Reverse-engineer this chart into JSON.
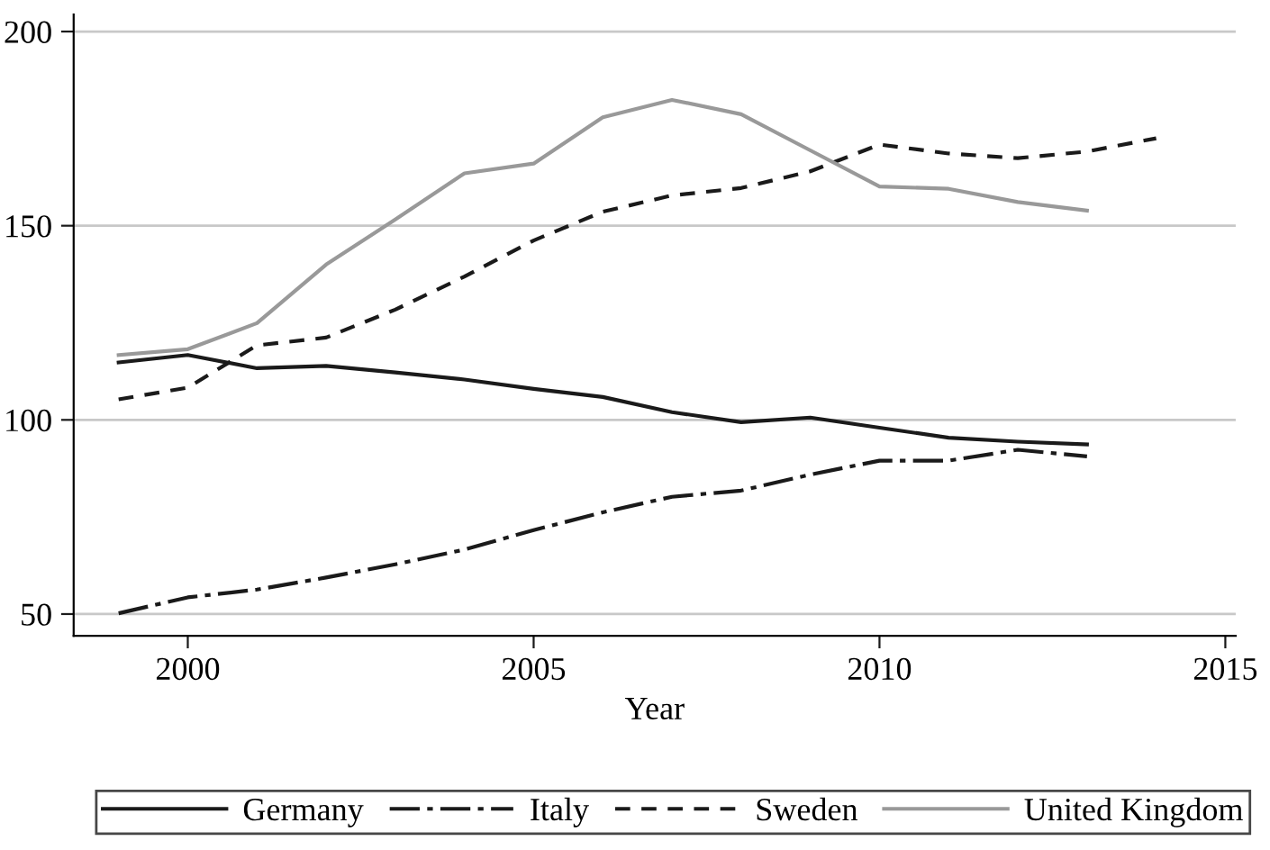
{
  "chart_data": {
    "type": "line",
    "xlabel": "Year",
    "x": [
      1999,
      2000,
      2001,
      2002,
      2003,
      2004,
      2005,
      2006,
      2007,
      2008,
      2009,
      2010,
      2011,
      2012,
      2013,
      2014
    ],
    "xlim": [
      1998.35,
      2015.15
    ],
    "xticks": [
      2000,
      2005,
      2010,
      2015
    ],
    "ylim": [
      44.4,
      204.4
    ],
    "yticks": [
      50,
      100,
      150,
      200
    ],
    "grid": "y",
    "legend": "bottom",
    "marker": "none",
    "series": [
      {
        "name": "Germany",
        "color": "#1a1a1a",
        "line_style": "solid",
        "values": [
          114.8,
          116.7,
          113.3,
          113.9,
          112.2,
          110.4,
          108.0,
          105.9,
          102.0,
          99.4,
          100.6,
          98.0,
          95.4,
          94.4,
          93.7,
          null
        ]
      },
      {
        "name": "Italy",
        "color": "#1a1a1a",
        "line_style": "dashdot",
        "values": [
          50.2,
          54.3,
          56.3,
          59.4,
          62.8,
          66.6,
          71.6,
          76.2,
          80.2,
          81.8,
          85.9,
          89.5,
          89.5,
          92.3,
          90.6,
          null
        ]
      },
      {
        "name": "Sweden",
        "color": "#1a1a1a",
        "line_style": "dashed",
        "values": [
          105.3,
          108.3,
          119.2,
          121.2,
          128.4,
          136.9,
          146.2,
          153.6,
          157.8,
          159.7,
          164.0,
          170.9,
          168.6,
          167.4,
          169.1,
          172.5
        ]
      },
      {
        "name": "United Kingdom",
        "color": "#999999",
        "line_style": "solid",
        "values": [
          116.7,
          118.2,
          124.9,
          140.0,
          151.6,
          163.5,
          166.0,
          177.9,
          182.4,
          178.7,
          169.4,
          160.1,
          159.5,
          156.1,
          153.9,
          null
        ]
      }
    ]
  }
}
